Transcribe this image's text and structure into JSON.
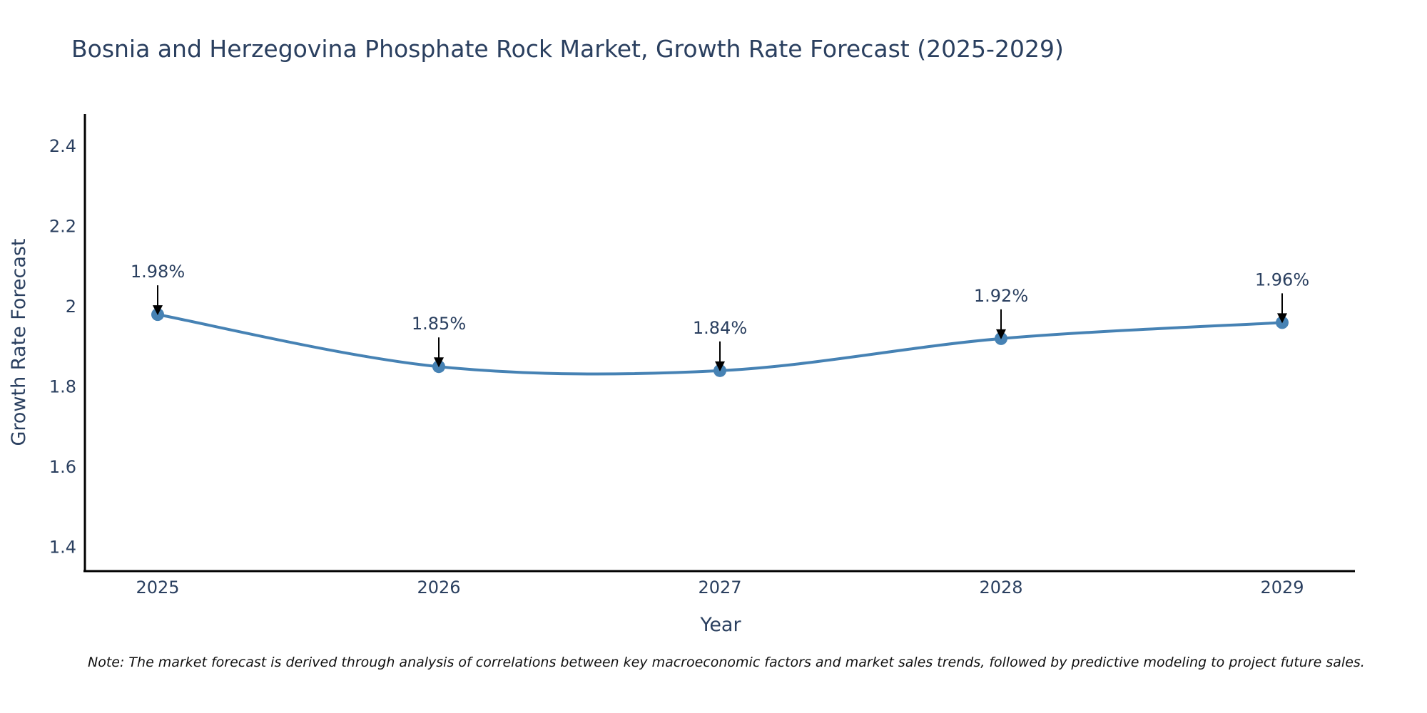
{
  "chart_data": {
    "type": "line",
    "title": "Bosnia and Herzegovina Phosphate Rock Market, Growth Rate Forecast (2025-2029)",
    "xlabel": "Year",
    "ylabel": "Growth Rate Forecast",
    "categories": [
      "2025",
      "2026",
      "2027",
      "2028",
      "2029"
    ],
    "values": [
      1.98,
      1.85,
      1.84,
      1.92,
      1.96
    ],
    "data_labels": [
      "1.98%",
      "1.85%",
      "1.84%",
      "1.92%",
      "1.96%"
    ],
    "y_ticks": [
      1.4,
      1.6,
      1.8,
      2,
      2.2,
      2.4
    ],
    "y_tick_labels": [
      "1.4",
      "1.6",
      "1.8",
      "2",
      "2.2",
      "2.4"
    ],
    "ylim": [
      1.34,
      2.48
    ],
    "grid": false,
    "line_shape": "spline",
    "series_color": "#4682b4",
    "annotation_arrow_color": "#000000"
  },
  "note": "Note: The market forecast is derived through analysis of correlations between key macroeconomic factors and market sales trends, followed by predictive modeling to project future sales."
}
